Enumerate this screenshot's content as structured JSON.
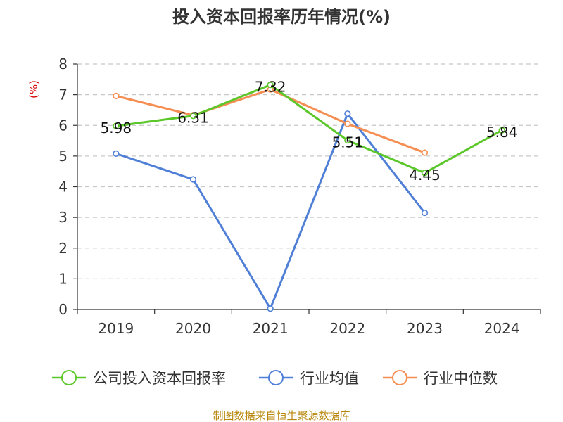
{
  "chart_data": {
    "type": "line",
    "title": "投入资本回报率历年情况(%)",
    "ylabel": "(%)",
    "xlabel": "",
    "categories": [
      "2019",
      "2020",
      "2021",
      "2022",
      "2023",
      "2024"
    ],
    "ylim": [
      0,
      8
    ],
    "yticks": [
      0,
      1,
      2,
      3,
      4,
      5,
      6,
      7,
      8
    ],
    "grid": true,
    "legend_position": "bottom",
    "series": [
      {
        "name": "公司投入资本回报率",
        "color": "#5cc72a",
        "values": [
          5.98,
          6.31,
          7.32,
          5.51,
          4.45,
          5.84
        ],
        "labels": [
          "5.98",
          "6.31",
          "7.32",
          "5.51",
          "4.45",
          "5.84"
        ]
      },
      {
        "name": "行业均值",
        "color": "#4f7fd6",
        "values": [
          5.08,
          4.24,
          0.03,
          6.38,
          3.15,
          null
        ]
      },
      {
        "name": "行业中位数",
        "color": "#f58e52",
        "values": [
          6.96,
          6.33,
          7.17,
          6.05,
          5.11,
          null
        ]
      }
    ]
  },
  "source": "制图数据来自恒生聚源数据库"
}
